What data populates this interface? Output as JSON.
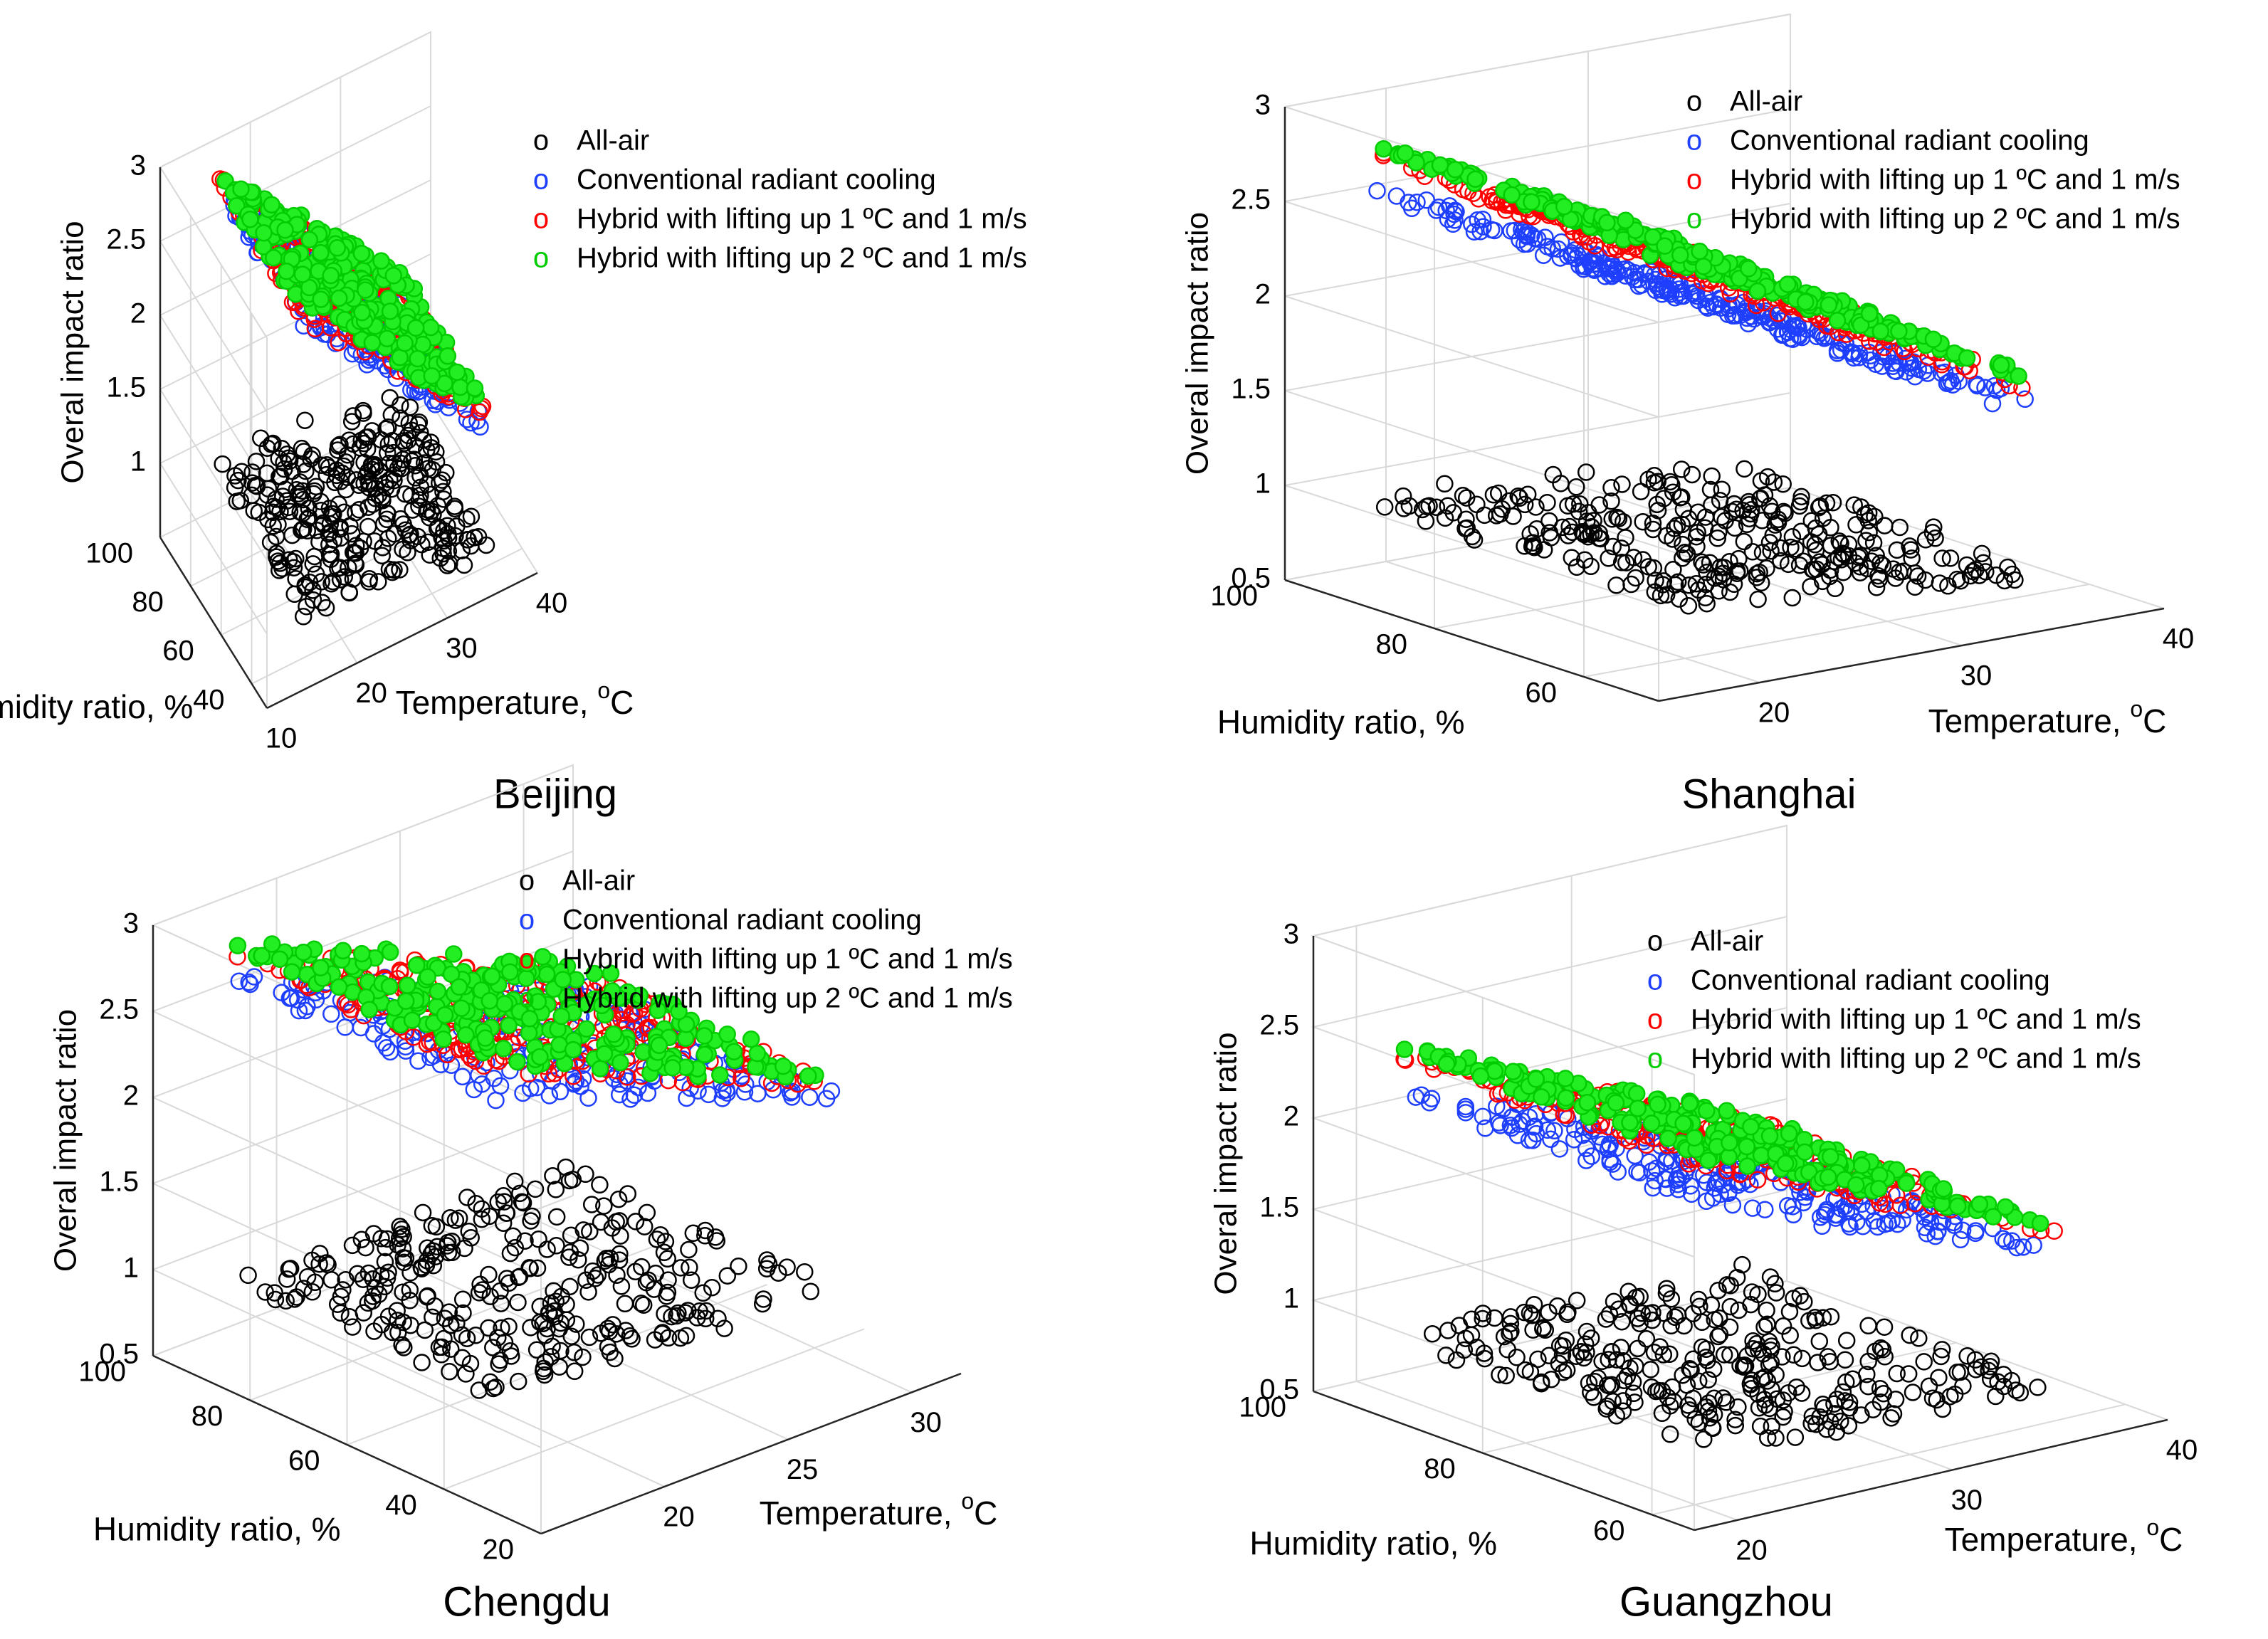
{
  "chart_data": [
    {
      "type": "scatter3d",
      "title": "Beijing",
      "xlabel": "Humidity ratio, %",
      "ylabel": "Temperature, ",
      "ylabel_unit_sup": "o",
      "ylabel_unit": "C",
      "zlabel": "Overal impact ratio",
      "xlim": [
        30,
        100
      ],
      "ylim": [
        10,
        40
      ],
      "zlim": [
        0.5,
        3
      ],
      "xticks": [
        "40",
        "60",
        "80",
        "100"
      ],
      "xtick_values": [
        40,
        60,
        80,
        100
      ],
      "yticks": [
        "10",
        "20",
        "30",
        "40"
      ],
      "ytick_values": [
        10,
        20,
        30,
        40
      ],
      "zticks": [
        "1",
        "1.5",
        "2",
        "2.5",
        "3"
      ],
      "ztick_values": [
        1,
        1.5,
        2,
        2.5,
        3
      ],
      "legend": [
        {
          "marker": "o",
          "label": "All-air",
          "color": "#000000"
        },
        {
          "marker": "o",
          "label": "Conventional radiant cooling",
          "color": "#1f3fff"
        },
        {
          "marker": "o",
          "label": "Hybrid with lifting up 1 ºC and 1 m/s",
          "color": "#ff0000"
        },
        {
          "marker": "o",
          "label": "Hybrid with lifting up 2 ºC and 1 m/s",
          "color": "#00cc00"
        }
      ],
      "series": [
        {
          "name": "All-air",
          "z_at_t_min": 0.95,
          "z_at_t_max": 0.72,
          "spread": 0.18
        },
        {
          "name": "Conventional radiant cooling",
          "z_at_t_min": 2.85,
          "z_at_t_max": 1.45,
          "spread": 0.05
        },
        {
          "name": "Hybrid with lifting up 1 ºC and 1 m/s",
          "z_at_t_min": 2.88,
          "z_at_t_max": 1.55,
          "spread": 0.05
        },
        {
          "name": "Hybrid with lifting up 2 ºC and 1 m/s",
          "z_at_t_min": 2.92,
          "z_at_t_max": 1.6,
          "spread": 0.05
        }
      ],
      "t_range": [
        15,
        36
      ],
      "h_range": [
        35,
        95
      ]
    },
    {
      "type": "scatter3d",
      "title": "Shanghai",
      "xlabel": "Humidity ratio, %",
      "ylabel": "Temperature, ",
      "ylabel_unit_sup": "o",
      "ylabel_unit": "C",
      "zlabel": "Overal impact ratio",
      "xlim": [
        50,
        100
      ],
      "ylim": [
        15,
        40
      ],
      "zlim": [
        0.5,
        3
      ],
      "xticks": [
        "60",
        "80",
        "100"
      ],
      "xtick_values": [
        60,
        80,
        100
      ],
      "yticks": [
        "20",
        "30",
        "40"
      ],
      "ytick_values": [
        20,
        30,
        40
      ],
      "zticks": [
        "0.5",
        "1",
        "1.5",
        "2",
        "2.5",
        "3"
      ],
      "ztick_values": [
        0.5,
        1,
        1.5,
        2,
        2.5,
        3
      ],
      "legend": [
        {
          "marker": "o",
          "label": "All-air",
          "color": "#000000"
        },
        {
          "marker": "o",
          "label": "Conventional radiant cooling",
          "color": "#1f3fff"
        },
        {
          "marker": "o",
          "label": "Hybrid with lifting up 1 ºC and 1 m/s",
          "color": "#ff0000"
        },
        {
          "marker": "o",
          "label": "Hybrid with lifting up 2 ºC and 1 m/s",
          "color": "#00cc00"
        }
      ],
      "series": [
        {
          "name": "All-air",
          "z_at_t_min": 0.9,
          "z_at_t_max": 0.7,
          "spread": 0.12
        },
        {
          "name": "Conventional radiant cooling",
          "z_at_t_min": 2.55,
          "z_at_t_max": 1.55,
          "spread": 0.1
        },
        {
          "name": "Hybrid with lifting up 1 ºC and 1 m/s",
          "z_at_t_min": 2.75,
          "z_at_t_max": 1.65,
          "spread": 0.08
        },
        {
          "name": "Hybrid with lifting up 2 ºC and 1 m/s",
          "z_at_t_min": 2.8,
          "z_at_t_max": 1.7,
          "spread": 0.05
        }
      ],
      "t_range": [
        18,
        36
      ],
      "h_range": [
        55,
        98
      ]
    },
    {
      "type": "scatter3d",
      "title": "Chengdu",
      "xlabel": "Humidity ratio, %",
      "ylabel": "Temperature, ",
      "ylabel_unit_sup": "o",
      "ylabel_unit": "C",
      "zlabel": "Overal impact ratio",
      "xlim": [
        20,
        100
      ],
      "ylim": [
        15,
        32
      ],
      "zlim": [
        0.5,
        3
      ],
      "xticks": [
        "20",
        "40",
        "60",
        "80",
        "100"
      ],
      "xtick_values": [
        20,
        40,
        60,
        80,
        100
      ],
      "yticks": [
        "20",
        "25",
        "30"
      ],
      "ytick_values": [
        20,
        25,
        30
      ],
      "zticks": [
        "0.5",
        "1",
        "1.5",
        "2",
        "2.5",
        "3"
      ],
      "ztick_values": [
        0.5,
        1,
        1.5,
        2,
        2.5,
        3
      ],
      "legend": [
        {
          "marker": "o",
          "label": "All-air",
          "color": "#000000"
        },
        {
          "marker": "o",
          "label": "Conventional radiant cooling",
          "color": "#1f3fff"
        },
        {
          "marker": "o",
          "label": "Hybrid with lifting up 1 ºC and 1 m/s",
          "color": "#ff0000"
        },
        {
          "marker": "o",
          "label": "Hybrid with lifting up 2 ºC and 1 m/s",
          "color": "#00cc00"
        }
      ],
      "series": [
        {
          "name": "All-air",
          "z_at_t_min": 0.92,
          "z_at_t_max": 0.8,
          "spread": 0.1
        },
        {
          "name": "Conventional radiant cooling",
          "z_at_t_min": 2.65,
          "z_at_t_max": 1.9,
          "spread": 0.04
        },
        {
          "name": "Hybrid with lifting up 1 ºC and 1 m/s",
          "z_at_t_min": 2.8,
          "z_at_t_max": 1.95,
          "spread": 0.04
        },
        {
          "name": "Hybrid with lifting up 2 ºC and 1 m/s",
          "z_at_t_min": 2.85,
          "z_at_t_max": 2.0,
          "spread": 0.04
        }
      ],
      "t_range": [
        17,
        31
      ],
      "h_range": [
        40,
        95
      ]
    },
    {
      "type": "scatter3d",
      "title": "Guangzhou",
      "xlabel": "Humidity ratio, %",
      "ylabel": "Temperature, ",
      "ylabel_unit_sup": "o",
      "ylabel_unit": "C",
      "zlabel": "Overal impact ratio",
      "xlim": [
        55,
        100
      ],
      "ylim": [
        18,
        40
      ],
      "zlim": [
        0.5,
        3
      ],
      "xticks": [
        "60",
        "80",
        "100"
      ],
      "xtick_values": [
        60,
        80,
        100
      ],
      "yticks": [
        "20",
        "30",
        "40"
      ],
      "ytick_values": [
        20,
        30,
        40
      ],
      "zticks": [
        "0.5",
        "1",
        "1.5",
        "2",
        "2.5",
        "3"
      ],
      "ztick_values": [
        0.5,
        1,
        1.5,
        2,
        2.5,
        3
      ],
      "legend": [
        {
          "marker": "o",
          "label": "All-air",
          "color": "#000000"
        },
        {
          "marker": "o",
          "label": "Conventional radiant cooling",
          "color": "#1f3fff"
        },
        {
          "marker": "o",
          "label": "Hybrid with lifting up 1 ºC and 1 m/s",
          "color": "#ff0000"
        },
        {
          "marker": "o",
          "label": "Hybrid with lifting up 2 ºC and 1 m/s",
          "color": "#00cc00"
        }
      ],
      "series": [
        {
          "name": "All-air",
          "z_at_t_min": 0.78,
          "z_at_t_max": 0.68,
          "spread": 0.1
        },
        {
          "name": "Conventional radiant cooling",
          "z_at_t_min": 2.1,
          "z_at_t_max": 1.42,
          "spread": 0.06
        },
        {
          "name": "Hybrid with lifting up 1 ºC and 1 m/s",
          "z_at_t_min": 2.3,
          "z_at_t_max": 1.52,
          "spread": 0.04
        },
        {
          "name": "Hybrid with lifting up 2 ºC and 1 m/s",
          "z_at_t_min": 2.35,
          "z_at_t_max": 1.55,
          "spread": 0.03
        }
      ],
      "t_range": [
        21,
        37
      ],
      "h_range": [
        60,
        98
      ]
    }
  ]
}
